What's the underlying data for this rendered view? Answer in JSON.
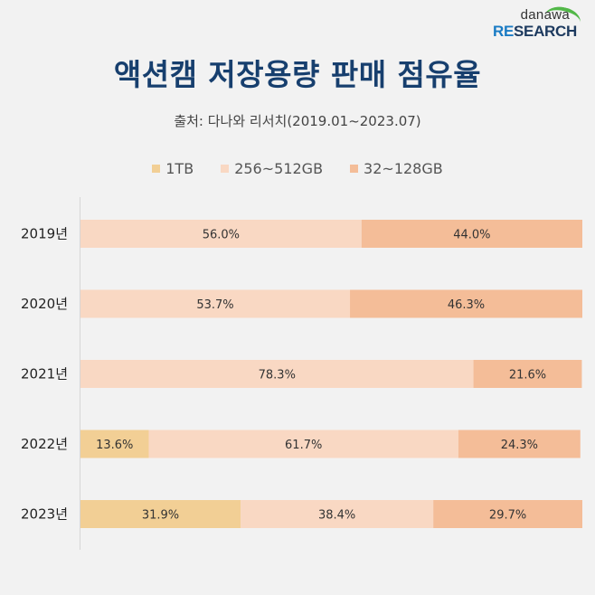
{
  "brand": {
    "top": "danawa",
    "bottom_accent": "RE",
    "bottom_rest": "SEARCH"
  },
  "header": {
    "title": "액션캠 저장용량 판매 점유율",
    "subtitle": "출처: 다나와 리서치(2019.01~2023.07)"
  },
  "chart_data": {
    "type": "bar",
    "orientation": "horizontal-stacked-100",
    "title": "액션캠 저장용량 판매 점유율",
    "subtitle": "출처: 다나와 리서치(2019.01~2023.07)",
    "xlabel": "",
    "ylabel": "",
    "xlim": [
      0,
      100
    ],
    "grid": false,
    "legend_position": "top-center",
    "categories": [
      "2019년",
      "2020년",
      "2021년",
      "2022년",
      "2023년"
    ],
    "series": [
      {
        "name": "1TB",
        "color": "#f2cf95",
        "values": [
          0,
          0,
          0,
          13.6,
          31.9
        ],
        "labels": [
          "",
          "",
          "",
          "13.6%",
          "31.9%"
        ]
      },
      {
        "name": "256~512GB",
        "color": "#f9d8c3",
        "values": [
          56.0,
          53.7,
          78.3,
          61.7,
          38.4
        ],
        "labels": [
          "56.0%",
          "53.7%",
          "78.3%",
          "61.7%",
          "38.4%"
        ]
      },
      {
        "name": "32~128GB",
        "color": "#f4bd98",
        "values": [
          44.0,
          46.3,
          21.6,
          24.3,
          29.7
        ],
        "labels": [
          "44.0%",
          "46.3%",
          "21.6%",
          "24.3%",
          "29.7%"
        ]
      }
    ]
  },
  "colors": {
    "title": "#173f6e",
    "axis": "#d6d6d6",
    "background": "#f2f2f2"
  }
}
